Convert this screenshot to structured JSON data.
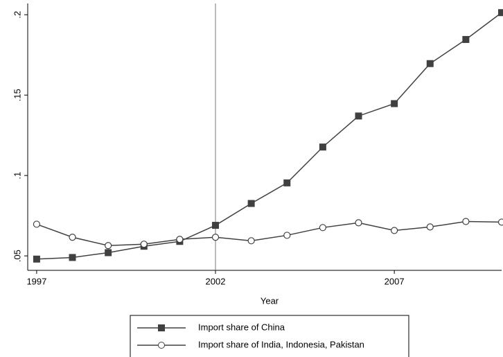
{
  "chart_data": {
    "type": "line",
    "x_label": "Year",
    "x": [
      1997,
      1998,
      1999,
      2000,
      2001,
      2002,
      2003,
      2004,
      2005,
      2006,
      2007,
      2008,
      2009,
      2010
    ],
    "series": [
      {
        "name": "Import share of China",
        "color": "#404040",
        "marker": "square",
        "values": [
          0.048,
          0.049,
          0.052,
          0.056,
          0.059,
          0.069,
          0.0826,
          0.0954,
          0.1177,
          0.137,
          0.1447,
          0.1696,
          0.1846,
          0.2013
        ]
      },
      {
        "name": "Import share of India, Indonesia, Pakistan",
        "color": "#404040",
        "marker": "hollow-circle",
        "values": [
          0.0697,
          0.0616,
          0.0564,
          0.0573,
          0.0603,
          0.0616,
          0.0594,
          0.0628,
          0.0676,
          0.0706,
          0.0658,
          0.068,
          0.0714,
          0.071
        ]
      }
    ],
    "xlim": [
      1996.75,
      2010.0
    ],
    "ylim": [
      0.041,
      0.207
    ],
    "xticks": [
      1997,
      2002,
      2007
    ],
    "yticks": [
      {
        "value": 0.05,
        "label": ".05"
      },
      {
        "value": 0.1,
        "label": ".1"
      },
      {
        "value": 0.15,
        "label": ".15"
      },
      {
        "value": 0.2,
        "label": ".2"
      }
    ],
    "xline": 2002,
    "grid": false,
    "legend": "bottom"
  }
}
